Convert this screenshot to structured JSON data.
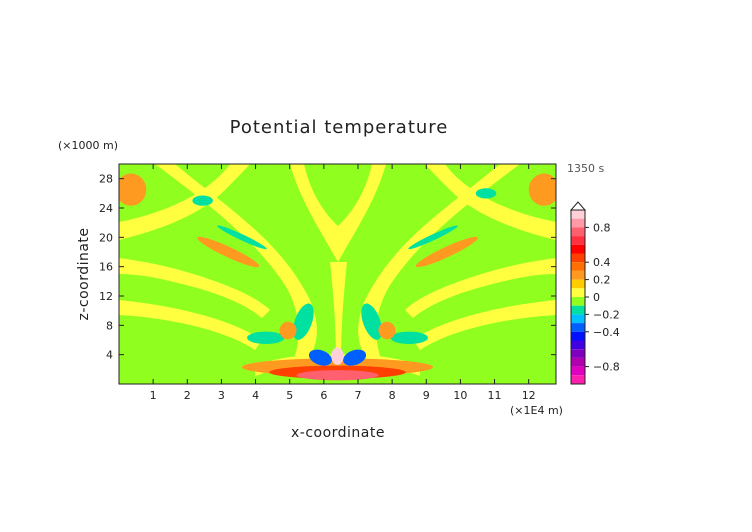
{
  "chart_data": {
    "type": "heatmap",
    "title": "Potential temperature",
    "time_label": "1350 s",
    "xlabel": "x-coordinate",
    "ylabel": "z-coordinate",
    "x_unit": "(×1E4 m)",
    "y_unit": "(×1000 m)",
    "xlim": [
      0,
      12.8
    ],
    "ylim": [
      0,
      30
    ],
    "x_ticks": [
      1,
      2,
      3,
      4,
      5,
      6,
      7,
      8,
      9,
      10,
      11,
      12
    ],
    "y_ticks": [
      4,
      8,
      12,
      16,
      20,
      24,
      28
    ],
    "colorbar": {
      "labels": [
        "0.8",
        "0.4",
        "0.2",
        "0",
        "−0.2",
        "−0.4",
        "−0.8"
      ],
      "label_values": [
        0.8,
        0.4,
        0.2,
        0,
        -0.2,
        -0.4,
        -0.8
      ],
      "bands": [
        {
          "from": 0.9,
          "to": 1.0,
          "color": "#ffd0d8"
        },
        {
          "from": 0.8,
          "to": 0.9,
          "color": "#ff9aa8"
        },
        {
          "from": 0.7,
          "to": 0.8,
          "color": "#ff6070"
        },
        {
          "from": 0.6,
          "to": 0.7,
          "color": "#ff3040"
        },
        {
          "from": 0.5,
          "to": 0.6,
          "color": "#ff0000"
        },
        {
          "from": 0.4,
          "to": 0.5,
          "color": "#ff4000"
        },
        {
          "from": 0.3,
          "to": 0.4,
          "color": "#ff7000"
        },
        {
          "from": 0.2,
          "to": 0.3,
          "color": "#ff9a20"
        },
        {
          "from": 0.1,
          "to": 0.2,
          "color": "#ffcc00"
        },
        {
          "from": 0.0,
          "to": 0.1,
          "color": "#ffff40"
        },
        {
          "from": -0.1,
          "to": 0.0,
          "color": "#90ff20"
        },
        {
          "from": -0.2,
          "to": -0.1,
          "color": "#00e0a0"
        },
        {
          "from": -0.3,
          "to": -0.2,
          "color": "#00c0ff"
        },
        {
          "from": -0.4,
          "to": -0.3,
          "color": "#0060ff"
        },
        {
          "from": -0.5,
          "to": -0.4,
          "color": "#0010ff"
        },
        {
          "from": -0.6,
          "to": -0.5,
          "color": "#4000e0"
        },
        {
          "from": -0.7,
          "to": -0.6,
          "color": "#8000c0"
        },
        {
          "from": -0.8,
          "to": -0.7,
          "color": "#b000b0"
        },
        {
          "from": -0.9,
          "to": -0.8,
          "color": "#e000c0"
        },
        {
          "from": -1.0,
          "to": -0.9,
          "color": "#ff20b0"
        }
      ]
    },
    "background_value": -0.05,
    "features": [
      {
        "kind": "ellipse",
        "cx": 0.35,
        "cy": 26.5,
        "rx": 0.45,
        "ry": 2.2,
        "value": 0.25
      },
      {
        "kind": "ellipse",
        "cx": 12.45,
        "cy": 26.5,
        "rx": 0.45,
        "ry": 2.2,
        "value": 0.25
      },
      {
        "kind": "ellipse",
        "cx": 3.2,
        "cy": 18.0,
        "rx": 1.0,
        "ry": 0.7,
        "value": 0.25,
        "rotate": 25
      },
      {
        "kind": "ellipse",
        "cx": 9.6,
        "cy": 18.0,
        "rx": 1.0,
        "ry": 0.7,
        "value": 0.25,
        "rotate": -25
      },
      {
        "kind": "ellipse",
        "cx": 2.45,
        "cy": 25.0,
        "rx": 0.3,
        "ry": 0.7,
        "value": -0.15
      },
      {
        "kind": "ellipse",
        "cx": 10.75,
        "cy": 26.0,
        "rx": 0.3,
        "ry": 0.7,
        "value": -0.15
      },
      {
        "kind": "ellipse",
        "cx": 3.6,
        "cy": 20.0,
        "rx": 0.8,
        "ry": 0.4,
        "value": -0.15,
        "rotate": 25
      },
      {
        "kind": "ellipse",
        "cx": 9.2,
        "cy": 20.0,
        "rx": 0.8,
        "ry": 0.4,
        "value": -0.15,
        "rotate": -25
      },
      {
        "kind": "ellipse",
        "cx": 5.4,
        "cy": 8.5,
        "rx": 0.25,
        "ry": 2.6,
        "value": -0.15,
        "rotate": 20
      },
      {
        "kind": "ellipse",
        "cx": 7.4,
        "cy": 8.5,
        "rx": 0.25,
        "ry": 2.6,
        "value": -0.15,
        "rotate": -20
      },
      {
        "kind": "ellipse",
        "cx": 4.3,
        "cy": 6.3,
        "rx": 0.55,
        "ry": 0.85,
        "value": -0.15
      },
      {
        "kind": "ellipse",
        "cx": 8.5,
        "cy": 6.3,
        "rx": 0.55,
        "ry": 0.85,
        "value": -0.15
      },
      {
        "kind": "ellipse",
        "cx": 4.95,
        "cy": 7.3,
        "rx": 0.25,
        "ry": 1.2,
        "value": 0.25,
        "rotate": 20
      },
      {
        "kind": "ellipse",
        "cx": 7.85,
        "cy": 7.3,
        "rx": 0.25,
        "ry": 1.2,
        "value": 0.25,
        "rotate": -20
      },
      {
        "kind": "ellipse",
        "cx": 6.4,
        "cy": 2.3,
        "rx": 2.8,
        "ry": 1.2,
        "value": 0.25
      },
      {
        "kind": "ellipse",
        "cx": 6.4,
        "cy": 1.6,
        "rx": 2.0,
        "ry": 0.9,
        "value": 0.45
      },
      {
        "kind": "ellipse",
        "cx": 6.4,
        "cy": 1.2,
        "rx": 1.2,
        "ry": 0.7,
        "value": 0.75
      },
      {
        "kind": "ellipse",
        "cx": 5.9,
        "cy": 3.6,
        "rx": 0.35,
        "ry": 1.0,
        "value": -0.35,
        "rotate": 20
      },
      {
        "kind": "ellipse",
        "cx": 6.9,
        "cy": 3.6,
        "rx": 0.35,
        "ry": 1.0,
        "value": -0.35,
        "rotate": -20
      },
      {
        "kind": "ellipse",
        "cx": 6.4,
        "cy": 3.8,
        "rx": 0.18,
        "ry": 1.2,
        "value": 0.95
      }
    ]
  }
}
